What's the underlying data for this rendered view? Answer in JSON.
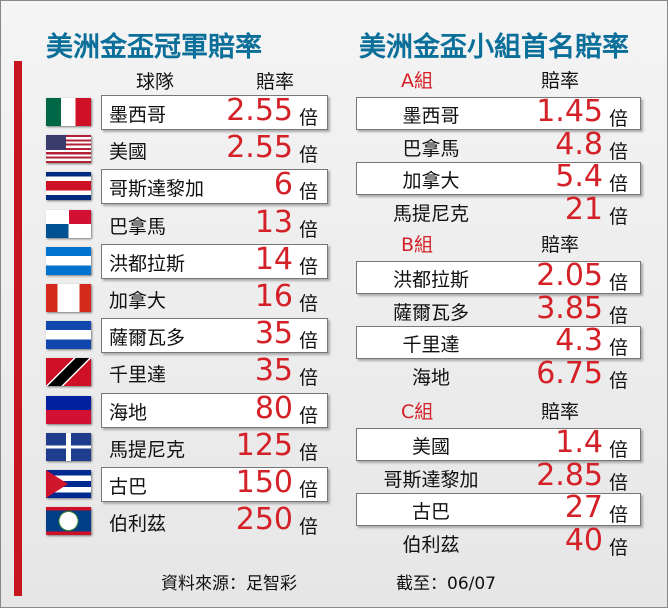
{
  "left": {
    "title": "美洲金盃冠軍賠率",
    "headers": [
      "球隊",
      "賠率"
    ],
    "rows": [
      {
        "team": "墨西哥",
        "odds": 2.55
      },
      {
        "team": "美國",
        "odds": 2.55
      },
      {
        "team": "哥斯達黎加",
        "odds": 6
      },
      {
        "team": "巴拿馬",
        "odds": 13
      },
      {
        "team": "洪都拉斯",
        "odds": 14
      },
      {
        "team": "加拿大",
        "odds": 16
      },
      {
        "team": "薩爾瓦多",
        "odds": 35
      },
      {
        "team": "千里達",
        "odds": 35
      },
      {
        "team": "海地",
        "odds": 80
      },
      {
        "team": "馬提尼克",
        "odds": 125
      },
      {
        "team": "古巴",
        "odds": 150
      },
      {
        "team": "伯利茲",
        "odds": 250
      }
    ]
  },
  "unit": "倍",
  "right": {
    "title": "美洲金盃小組首名賠率",
    "groups": [
      {
        "name": "A組",
        "odds_header": "賠率",
        "rows": [
          {
            "team": "墨西哥",
            "odds": 1.45
          },
          {
            "team": "巴拿馬",
            "odds": 4.8
          },
          {
            "team": "加拿大",
            "odds": 5.4
          },
          {
            "team": "馬提尼克",
            "odds": 21
          }
        ]
      },
      {
        "name": "B組",
        "odds_header": "賠率",
        "rows": [
          {
            "team": "洪都拉斯",
            "odds": 2.05
          },
          {
            "team": "薩爾瓦多",
            "odds": 3.85
          },
          {
            "team": "千里達",
            "odds": 4.3
          },
          {
            "team": "海地",
            "odds": 6.75
          }
        ]
      },
      {
        "name": "C組",
        "odds_header": "賠率",
        "rows": [
          {
            "team": "美國",
            "odds": 1.4
          },
          {
            "team": "哥斯達黎加",
            "odds": 2.85
          },
          {
            "team": "古巴",
            "odds": 27
          },
          {
            "team": "伯利茲",
            "odds": 40
          }
        ]
      }
    ]
  },
  "footer": {
    "source": "資料來源：足智彩",
    "date": "截至：06/07"
  }
}
